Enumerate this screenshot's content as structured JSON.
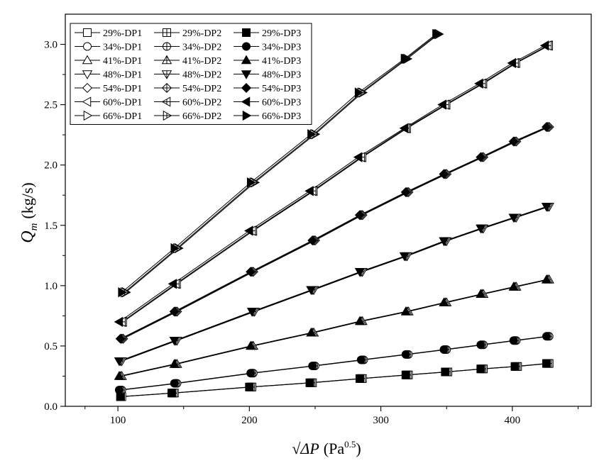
{
  "chart_data": {
    "type": "line",
    "title": "",
    "xlabel": {
      "main": "√ΔP",
      "unit_base": "Pa",
      "unit_exp": "0.5"
    },
    "ylabel": {
      "main": "Q",
      "sub": "m",
      "unit": "(kg/s)"
    },
    "xlim": [
      60,
      460
    ],
    "ylim": [
      0,
      3.25
    ],
    "xticks": [
      100,
      200,
      300,
      400
    ],
    "xtick_labels": [
      "100",
      "200",
      "300",
      "400"
    ],
    "yticks": [
      0,
      0.5,
      1.0,
      1.5,
      2.0,
      2.5,
      3.0
    ],
    "ytick_labels": [
      "0.0",
      "0.5",
      "1.0",
      "1.5",
      "2.0",
      "2.5",
      "3.0"
    ],
    "grid": false,
    "legend_position": "top-left",
    "series": [
      {
        "name": "29%-DP1",
        "marker": "square",
        "fill": "open",
        "x": [
          103,
          143,
          202,
          248,
          286,
          321,
          351,
          378,
          404,
          428
        ],
        "y": [
          0.08,
          0.11,
          0.16,
          0.195,
          0.23,
          0.26,
          0.285,
          0.31,
          0.33,
          0.355
        ]
      },
      {
        "name": "29%-DP2",
        "marker": "square",
        "fill": "plus",
        "x": [
          102,
          142,
          201,
          247,
          285,
          320,
          350,
          377,
          403,
          427
        ],
        "y": [
          0.08,
          0.11,
          0.16,
          0.195,
          0.23,
          0.26,
          0.285,
          0.31,
          0.33,
          0.355
        ]
      },
      {
        "name": "29%-DP3",
        "marker": "square",
        "fill": "filled",
        "x": [
          102,
          141,
          200,
          246,
          284,
          319,
          349,
          376,
          402,
          426
        ],
        "y": [
          0.08,
          0.11,
          0.16,
          0.195,
          0.23,
          0.26,
          0.285,
          0.31,
          0.33,
          0.355
        ]
      },
      {
        "name": "34%-DP1",
        "marker": "circle",
        "fill": "open",
        "x": [
          103,
          145,
          203,
          250,
          287,
          321,
          350,
          378,
          403,
          428
        ],
        "y": [
          0.135,
          0.19,
          0.275,
          0.335,
          0.385,
          0.43,
          0.47,
          0.51,
          0.545,
          0.58
        ]
      },
      {
        "name": "34%-DP2",
        "marker": "circle",
        "fill": "plus",
        "x": [
          102,
          144,
          202,
          249,
          286,
          320,
          349,
          377,
          402,
          427
        ],
        "y": [
          0.135,
          0.19,
          0.275,
          0.335,
          0.385,
          0.43,
          0.47,
          0.51,
          0.545,
          0.58
        ]
      },
      {
        "name": "34%-DP3",
        "marker": "circle",
        "fill": "filled",
        "x": [
          101,
          143,
          201,
          248,
          285,
          319,
          348,
          376,
          401,
          426
        ],
        "y": [
          0.135,
          0.19,
          0.275,
          0.335,
          0.385,
          0.43,
          0.47,
          0.51,
          0.545,
          0.58
        ]
      },
      {
        "name": "41%-DP1",
        "marker": "triangle-up",
        "fill": "open",
        "x": [
          103,
          145,
          203,
          249,
          286,
          321,
          350,
          378,
          403,
          428
        ],
        "y": [
          0.25,
          0.35,
          0.5,
          0.61,
          0.705,
          0.785,
          0.86,
          0.93,
          0.99,
          1.05
        ]
      },
      {
        "name": "41%-DP2",
        "marker": "triangle-up",
        "fill": "plus",
        "x": [
          102,
          144,
          202,
          248,
          285,
          320,
          349,
          377,
          402,
          427
        ],
        "y": [
          0.25,
          0.35,
          0.5,
          0.61,
          0.705,
          0.785,
          0.86,
          0.93,
          0.99,
          1.05
        ]
      },
      {
        "name": "41%-DP3",
        "marker": "triangle-up",
        "fill": "filled",
        "x": [
          101,
          143,
          201,
          247,
          284,
          319,
          348,
          376,
          401,
          426
        ],
        "y": [
          0.25,
          0.35,
          0.5,
          0.61,
          0.705,
          0.785,
          0.86,
          0.93,
          0.99,
          1.05
        ]
      },
      {
        "name": "48%-DP1",
        "marker": "triangle-down",
        "fill": "open",
        "x": [
          103,
          145,
          204,
          249,
          286,
          320,
          350,
          378,
          403,
          428
        ],
        "y": [
          0.375,
          0.545,
          0.785,
          0.965,
          1.115,
          1.245,
          1.37,
          1.475,
          1.565,
          1.655
        ]
      },
      {
        "name": "48%-DP2",
        "marker": "triangle-down",
        "fill": "plus",
        "x": [
          102,
          144,
          203,
          248,
          285,
          319,
          349,
          377,
          402,
          427
        ],
        "y": [
          0.375,
          0.545,
          0.785,
          0.965,
          1.115,
          1.245,
          1.37,
          1.475,
          1.565,
          1.655
        ]
      },
      {
        "name": "48%-DP3",
        "marker": "triangle-down",
        "fill": "filled",
        "x": [
          101,
          143,
          202,
          247,
          284,
          318,
          348,
          376,
          401,
          426
        ],
        "y": [
          0.375,
          0.545,
          0.785,
          0.965,
          1.115,
          1.245,
          1.37,
          1.475,
          1.565,
          1.655
        ]
      },
      {
        "name": "54%-DP1",
        "marker": "diamond",
        "fill": "open",
        "x": [
          104,
          145,
          203,
          250,
          286,
          321,
          350,
          378,
          403,
          428
        ],
        "y": [
          0.56,
          0.785,
          1.115,
          1.375,
          1.585,
          1.775,
          1.925,
          2.065,
          2.195,
          2.315
        ]
      },
      {
        "name": "54%-DP2",
        "marker": "diamond",
        "fill": "plus",
        "x": [
          103,
          144,
          202,
          249,
          285,
          320,
          349,
          377,
          402,
          427
        ],
        "y": [
          0.56,
          0.785,
          1.115,
          1.375,
          1.585,
          1.775,
          1.925,
          2.065,
          2.195,
          2.315
        ]
      },
      {
        "name": "54%-DP3",
        "marker": "diamond",
        "fill": "filled",
        "x": [
          102,
          143,
          201,
          248,
          284,
          319,
          348,
          376,
          401,
          426
        ],
        "y": [
          0.56,
          0.785,
          1.115,
          1.375,
          1.585,
          1.775,
          1.925,
          2.065,
          2.195,
          2.315
        ]
      },
      {
        "name": "60%-DP1",
        "marker": "triangle-left",
        "fill": "open",
        "x": [
          104,
          145,
          203,
          249,
          286,
          320,
          350,
          378,
          403,
          428
        ],
        "y": [
          0.7,
          1.015,
          1.455,
          1.785,
          2.065,
          2.305,
          2.5,
          2.675,
          2.845,
          2.99
        ]
      },
      {
        "name": "60%-DP2",
        "marker": "triangle-left",
        "fill": "plus",
        "x": [
          103,
          144,
          202,
          248,
          285,
          319,
          349,
          377,
          402,
          427
        ],
        "y": [
          0.7,
          1.015,
          1.455,
          1.785,
          2.065,
          2.305,
          2.5,
          2.675,
          2.845,
          2.99
        ]
      },
      {
        "name": "60%-DP3",
        "marker": "triangle-left",
        "fill": "filled",
        "x": [
          101,
          142,
          200,
          246,
          283,
          318,
          347,
          375,
          400,
          425
        ],
        "y": [
          0.7,
          1.015,
          1.455,
          1.785,
          2.065,
          2.305,
          2.5,
          2.675,
          2.845,
          2.99
        ]
      },
      {
        "name": "66%-DP1",
        "marker": "triangle-right",
        "fill": "open",
        "x": [
          106,
          146,
          204,
          250,
          286,
          320,
          344
        ],
        "y": [
          0.945,
          1.31,
          1.855,
          2.255,
          2.6,
          2.88,
          3.085
        ]
      },
      {
        "name": "66%-DP2",
        "marker": "triangle-right",
        "fill": "plus",
        "x": [
          105,
          145,
          203,
          249,
          285,
          319,
          343
        ],
        "y": [
          0.945,
          1.31,
          1.855,
          2.255,
          2.6,
          2.88,
          3.085
        ]
      },
      {
        "name": "66%-DP3",
        "marker": "triangle-right",
        "fill": "filled",
        "x": [
          103,
          143,
          201,
          247,
          283,
          318,
          342
        ],
        "y": [
          0.945,
          1.31,
          1.855,
          2.255,
          2.6,
          2.88,
          3.085
        ]
      }
    ]
  }
}
